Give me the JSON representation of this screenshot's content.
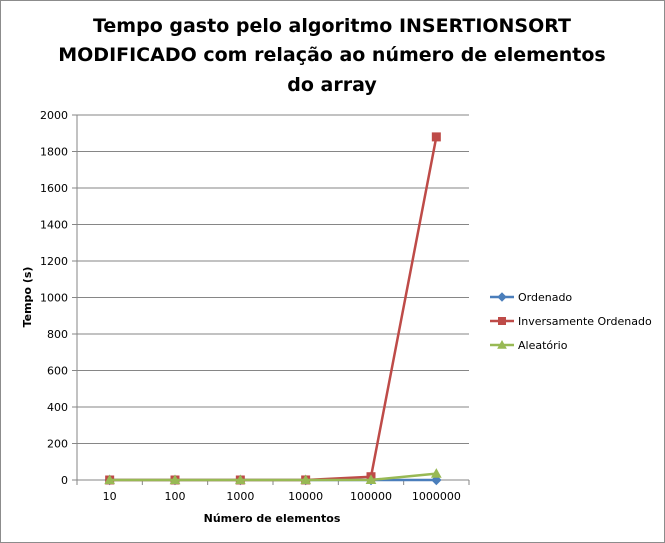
{
  "chart_data": {
    "type": "line",
    "title_lines": [
      "Tempo gasto pelo algoritmo INSERTIONSORT",
      "MODIFICADO com relação ao número de elementos",
      "do array"
    ],
    "xlabel": "Número de elementos",
    "ylabel": "Tempo (s)",
    "categories": [
      "10",
      "100",
      "1000",
      "10000",
      "100000",
      "1000000"
    ],
    "ylim": [
      0,
      2000
    ],
    "yticks": [
      "0",
      "200",
      "400",
      "600",
      "800",
      "1000",
      "1200",
      "1400",
      "1600",
      "1800",
      "2000"
    ],
    "grid": true,
    "legend_position": "right",
    "series": [
      {
        "name": "Ordenado",
        "color": "#4a7ebb",
        "marker": "diamond",
        "values": [
          0,
          0,
          0,
          0,
          0,
          0
        ]
      },
      {
        "name": "Inversamente Ordenado",
        "color": "#be4b48",
        "marker": "square",
        "values": [
          0,
          0,
          0,
          0.2,
          18,
          1880
        ]
      },
      {
        "name": "Aleatório",
        "color": "#98b954",
        "marker": "triangle",
        "values": [
          0,
          0,
          0,
          0.1,
          0.5,
          35
        ]
      }
    ]
  }
}
